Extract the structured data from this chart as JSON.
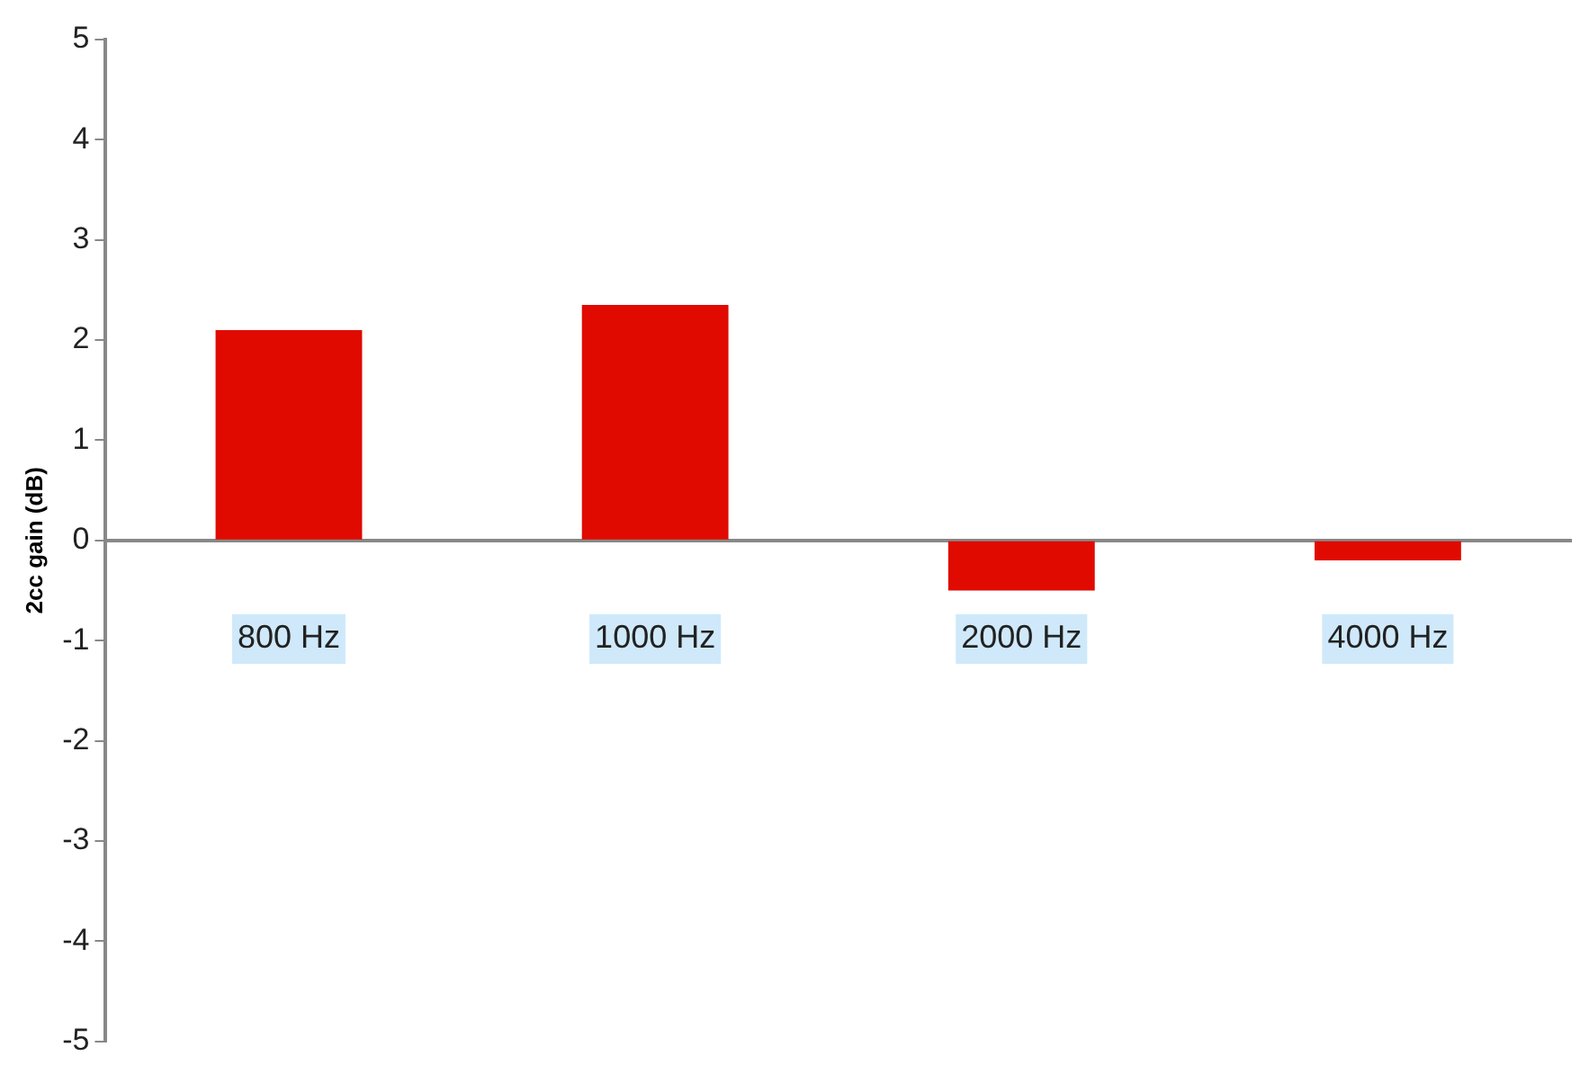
{
  "chart_data": {
    "type": "bar",
    "ylabel": "2cc gain (dB)",
    "categories": [
      "800 Hz",
      "1000 Hz",
      "2000 Hz",
      "4000 Hz"
    ],
    "series": [
      {
        "color": "#e00a00",
        "values": [
          2.1,
          2.35,
          -0.5,
          -0.2
        ]
      }
    ],
    "ylim": [
      -5,
      5
    ],
    "yticks": [
      -5,
      -4,
      -3,
      -2,
      -1,
      0,
      1,
      2,
      3,
      4,
      5
    ],
    "grid": false,
    "legend": false
  }
}
